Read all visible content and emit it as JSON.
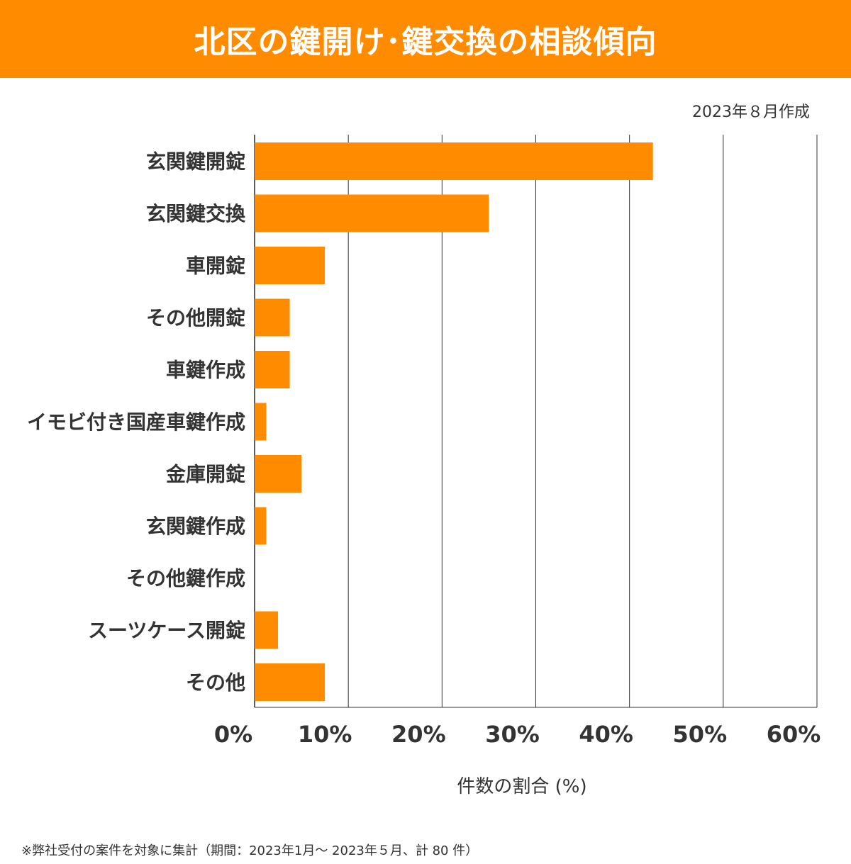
{
  "title": "北区の鍵開け･鍵交換の相談傾向",
  "created_label": "2023年８月作成",
  "footnote": "※弊社受付の案件を対象に集計（期間：2023年1月～ 2023年５月、計 80 件）",
  "colors": {
    "accent": "#ff8c00",
    "bar": "#ff8c00",
    "text": "#333333",
    "grid": "#333333"
  },
  "chart_data": {
    "type": "bar",
    "orientation": "horizontal",
    "categories": [
      "玄関鍵開錠",
      "玄関鍵交換",
      "車開錠",
      "その他開錠",
      "車鍵作成",
      "イモビ付き国産車鍵作成",
      "金庫開錠",
      "玄関鍵作成",
      "その他鍵作成",
      "スーツケース開錠",
      "その他"
    ],
    "values": [
      42.5,
      25,
      7.5,
      3.75,
      3.75,
      1.25,
      5,
      1.25,
      0,
      2.5,
      7.5
    ],
    "xlabel": "件数の割合 (%)",
    "ylabel": "",
    "xlim": [
      0,
      60
    ],
    "xticks": [
      "0%",
      "10%",
      "20%",
      "30%",
      "40%",
      "50%",
      "60%"
    ],
    "grid": "vertical"
  }
}
